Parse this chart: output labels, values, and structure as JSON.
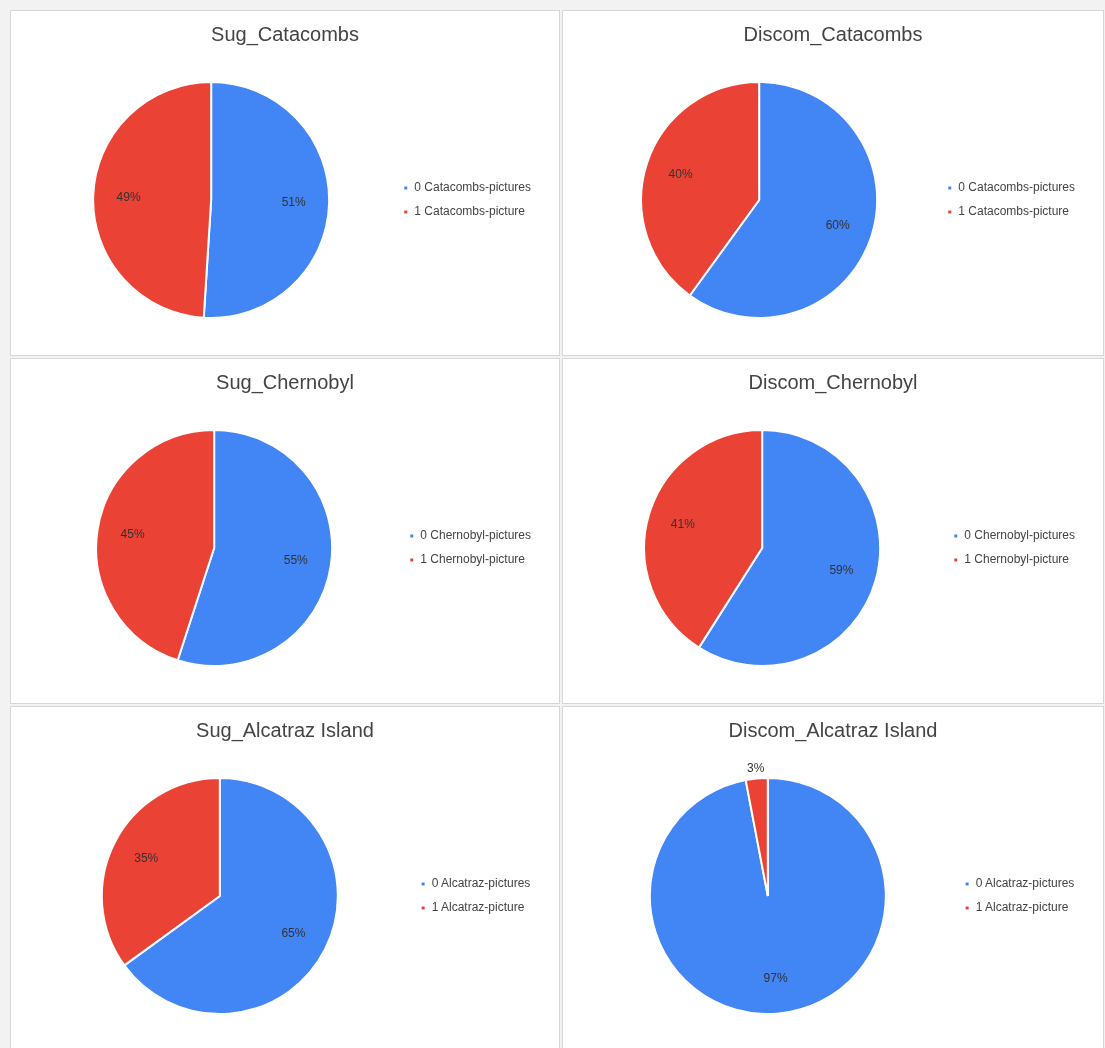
{
  "chart_data": [
    {
      "type": "pie",
      "title": "Sug_Catacombs",
      "categories": [
        "0 Catacombs-pictures",
        "1 Catacombs-picture"
      ],
      "values": [
        51,
        49
      ],
      "value_labels": [
        "51%",
        "49%"
      ],
      "colors": [
        "#4285f4",
        "#ea4335"
      ],
      "legend": "right"
    },
    {
      "type": "pie",
      "title": "Discom_Catacombs",
      "categories": [
        "0 Catacombs-pictures",
        "1 Catacombs-picture"
      ],
      "values": [
        60,
        40
      ],
      "value_labels": [
        "60%",
        "40%"
      ],
      "colors": [
        "#4285f4",
        "#ea4335"
      ],
      "legend": "right"
    },
    {
      "type": "pie",
      "title": "Sug_Chernobyl",
      "categories": [
        "0 Chernobyl-pictures",
        "1 Chernobyl-picture"
      ],
      "values": [
        55,
        45
      ],
      "value_labels": [
        "55%",
        "45%"
      ],
      "colors": [
        "#4285f4",
        "#ea4335"
      ],
      "legend": "right"
    },
    {
      "type": "pie",
      "title": "Discom_Chernobyl",
      "categories": [
        "0 Chernobyl-pictures",
        "1 Chernobyl-picture"
      ],
      "values": [
        59,
        41
      ],
      "value_labels": [
        "59%",
        "41%"
      ],
      "colors": [
        "#4285f4",
        "#ea4335"
      ],
      "legend": "right"
    },
    {
      "type": "pie",
      "title": "Sug_Alcatraz Island",
      "categories": [
        "0 Alcatraz-pictures",
        "1 Alcatraz-picture"
      ],
      "values": [
        65,
        35
      ],
      "value_labels": [
        "65%",
        "35%"
      ],
      "colors": [
        "#4285f4",
        "#ea4335"
      ],
      "legend": "right"
    },
    {
      "type": "pie",
      "title": "Discom_Alcatraz Island",
      "categories": [
        "0 Alcatraz-pictures",
        "1 Alcatraz-picture"
      ],
      "values": [
        97,
        3
      ],
      "value_labels": [
        "97%",
        "3%"
      ],
      "colors": [
        "#4285f4",
        "#ea4335"
      ],
      "legend": "right"
    }
  ]
}
